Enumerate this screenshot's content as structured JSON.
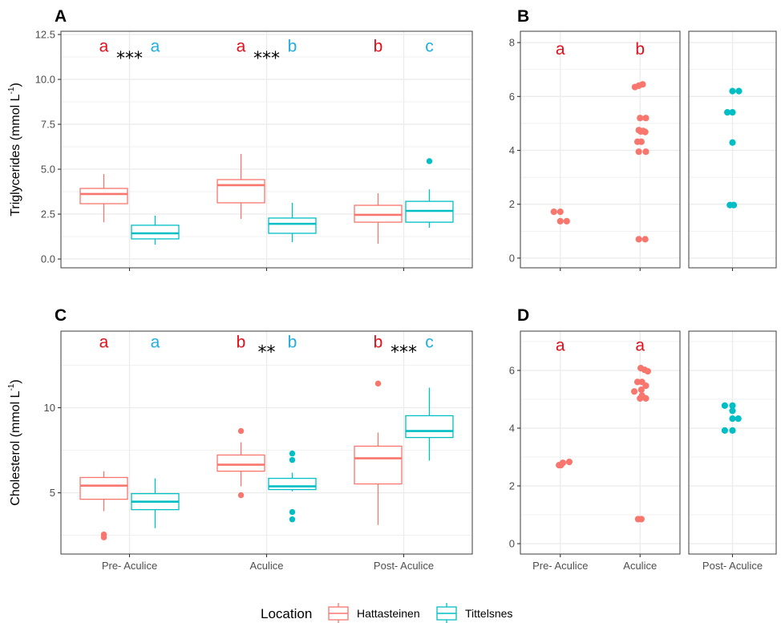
{
  "colors": {
    "hattasteinen": "#F8766D",
    "tittelsnes": "#00BFC4",
    "letter_red": "#E0101C",
    "letter_blue": "#22AEE0",
    "grid": "#ebebeb",
    "border": "#4d4d4d"
  },
  "legend": {
    "title": "Location",
    "position": "bottom",
    "entries": [
      {
        "key": "hattasteinen",
        "label": "Hattasteinen"
      },
      {
        "key": "tittelsnes",
        "label": "Tittelsnes"
      }
    ]
  },
  "chart_data": [
    {
      "id": "A",
      "panel_label": "A",
      "type": "box",
      "ylabel": "Triglycerides (mmol L",
      "ylabel_sup": "-1",
      "ylabel_close": ")",
      "ylim": [
        -0.49,
        12.68
      ],
      "yticks": [
        0.0,
        2.5,
        5.0,
        7.5,
        10.0,
        12.5
      ],
      "ytick_labels": [
        "0.0",
        "2.5",
        "5.0",
        "7.5",
        "10.0",
        "12.5"
      ],
      "yminor": [
        1.25,
        3.75,
        6.25,
        8.75,
        11.25
      ],
      "categories": [
        "Pre- Aculice",
        "Aculice",
        "Post- Aculice"
      ],
      "show_xtick_labels": false,
      "grid": true,
      "series": [
        {
          "name": "Hattasteinen",
          "key": "hattasteinen",
          "boxes": [
            {
              "category": "Pre- Aculice",
              "lower_whisker": 2.05,
              "q1": 3.08,
              "median": 3.62,
              "q3": 3.93,
              "upper_whisker": 4.73,
              "outliers": []
            },
            {
              "category": "Aculice",
              "lower_whisker": 2.23,
              "q1": 3.13,
              "median": 4.11,
              "q3": 4.42,
              "upper_whisker": 5.85,
              "outliers": []
            },
            {
              "category": "Post- Aculice",
              "lower_whisker": 0.85,
              "q1": 2.05,
              "median": 2.46,
              "q3": 2.99,
              "upper_whisker": 3.66,
              "outliers": []
            }
          ]
        },
        {
          "name": "Tittelsnes",
          "key": "tittelsnes",
          "boxes": [
            {
              "category": "Pre- Aculice",
              "lower_whisker": 0.8,
              "q1": 1.12,
              "median": 1.43,
              "q3": 1.88,
              "upper_whisker": 2.41,
              "outliers": []
            },
            {
              "category": "Aculice",
              "lower_whisker": 0.94,
              "q1": 1.43,
              "median": 1.96,
              "q3": 2.28,
              "upper_whisker": 3.13,
              "outliers": []
            },
            {
              "category": "Post- Aculice",
              "lower_whisker": 1.74,
              "q1": 2.05,
              "median": 2.68,
              "q3": 3.21,
              "upper_whisker": 3.88,
              "outliers": [
                5.45
              ]
            }
          ]
        }
      ],
      "annotations": [
        {
          "category": "Pre- Aculice",
          "text": "a",
          "color": "red",
          "pos": "left",
          "y": 11.9
        },
        {
          "category": "Pre- Aculice",
          "text": "***",
          "color": "black",
          "pos": "center",
          "y": 11.2
        },
        {
          "category": "Pre- Aculice",
          "text": "a",
          "color": "blue",
          "pos": "right",
          "y": 11.9
        },
        {
          "category": "Aculice",
          "text": "a",
          "color": "red",
          "pos": "left",
          "y": 11.9
        },
        {
          "category": "Aculice",
          "text": "***",
          "color": "black",
          "pos": "center",
          "y": 11.2
        },
        {
          "category": "Aculice",
          "text": "b",
          "color": "blue",
          "pos": "right",
          "y": 11.9
        },
        {
          "category": "Post- Aculice",
          "text": "b",
          "color": "red",
          "pos": "left",
          "y": 11.9
        },
        {
          "category": "Post- Aculice",
          "text": "c",
          "color": "blue",
          "pos": "right",
          "y": 11.9
        }
      ]
    },
    {
      "id": "B",
      "panel_label": "B",
      "type": "scatter",
      "ylim": [
        -0.36,
        8.42
      ],
      "yticks": [
        0,
        2,
        4,
        6,
        8
      ],
      "ytick_labels": [
        "0",
        "2",
        "4",
        "6",
        "8"
      ],
      "yminor": [
        1,
        3,
        5,
        7
      ],
      "facets": [
        {
          "categories": [
            "Pre- Aculice",
            "Aculice"
          ],
          "show_xtick_labels": false
        },
        {
          "categories": [
            "Post- Aculice"
          ],
          "show_xtick_labels": false
        }
      ],
      "grid": true,
      "points": [
        {
          "category": "Pre- Aculice",
          "key": "hattasteinen",
          "values": [
            1.72,
            1.72,
            1.37,
            1.37
          ],
          "jitter": [
            -0.5,
            0,
            0,
            0.5
          ]
        },
        {
          "category": "Aculice",
          "key": "hattasteinen",
          "values": [
            6.35,
            6.4,
            6.45,
            5.2,
            5.2,
            4.75,
            4.7,
            4.68,
            4.72,
            4.32,
            4.32,
            3.95,
            3.95,
            0.7,
            0.7
          ],
          "jitter": [
            -0.4,
            -0.1,
            0.2,
            0,
            0.45,
            -0.1,
            0.05,
            0.4,
            0.25,
            -0.2,
            0.1,
            -0.1,
            0.45,
            -0.1,
            0.4
          ]
        },
        {
          "category": "Post- Aculice",
          "key": "tittelsnes",
          "values": [
            6.2,
            6.2,
            5.41,
            5.41,
            4.29,
            1.97,
            1.97
          ],
          "jitter": [
            0,
            0.5,
            -0.4,
            0,
            0,
            -0.2,
            0.1
          ]
        }
      ],
      "annotations": [
        {
          "category": "Pre- Aculice",
          "text": "a",
          "color": "red",
          "y": 7.8
        },
        {
          "category": "Aculice",
          "text": "b",
          "color": "red",
          "y": 7.8
        }
      ]
    },
    {
      "id": "C",
      "panel_label": "C",
      "type": "box",
      "ylabel": "Cholesterol (mmol L",
      "ylabel_sup": "-1",
      "ylabel_close": ")",
      "ylim": [
        1.4,
        14.5
      ],
      "yticks": [
        5,
        10
      ],
      "ytick_labels": [
        "5",
        "10"
      ],
      "yminor": [
        2.5,
        7.5,
        12.5
      ],
      "categories": [
        "Pre- Aculice",
        "Aculice",
        "Post- Aculice"
      ],
      "show_xtick_labels": true,
      "grid": true,
      "series": [
        {
          "name": "Hattasteinen",
          "key": "hattasteinen",
          "boxes": [
            {
              "category": "Pre- Aculice",
              "lower_whisker": 3.92,
              "q1": 4.62,
              "median": 5.42,
              "q3": 5.9,
              "upper_whisker": 6.27,
              "outliers": [
                2.55,
                2.38
              ]
            },
            {
              "category": "Aculice",
              "lower_whisker": 5.38,
              "q1": 6.27,
              "median": 6.65,
              "q3": 7.22,
              "upper_whisker": 7.97,
              "outliers": [
                8.63,
                4.86
              ]
            },
            {
              "category": "Post- Aculice",
              "lower_whisker": 3.11,
              "q1": 5.52,
              "median": 7.03,
              "q3": 7.74,
              "upper_whisker": 8.54,
              "outliers": [
                11.42
              ]
            }
          ]
        },
        {
          "name": "Tittelsnes",
          "key": "tittelsnes",
          "boxes": [
            {
              "category": "Pre- Aculice",
              "lower_whisker": 2.92,
              "q1": 4.01,
              "median": 4.48,
              "q3": 4.95,
              "upper_whisker": 5.85,
              "outliers": []
            },
            {
              "category": "Aculice",
              "lower_whisker": 5.09,
              "q1": 5.19,
              "median": 5.38,
              "q3": 5.85,
              "upper_whisker": 6.18,
              "outliers": [
                7.31,
                6.93,
                3.87,
                3.44
              ]
            },
            {
              "category": "Post- Aculice",
              "lower_whisker": 6.89,
              "q1": 8.25,
              "median": 8.63,
              "q3": 9.53,
              "upper_whisker": 11.18,
              "outliers": []
            }
          ]
        }
      ],
      "annotations": [
        {
          "category": "Pre- Aculice",
          "text": "a",
          "color": "red",
          "pos": "left",
          "y": 13.9
        },
        {
          "category": "Pre- Aculice",
          "text": "a",
          "color": "blue",
          "pos": "right",
          "y": 13.9
        },
        {
          "category": "Aculice",
          "text": "b",
          "color": "red",
          "pos": "left",
          "y": 13.9
        },
        {
          "category": "Aculice",
          "text": "**",
          "color": "black",
          "pos": "center",
          "y": 13.3
        },
        {
          "category": "Aculice",
          "text": "b",
          "color": "blue",
          "pos": "right",
          "y": 13.9
        },
        {
          "category": "Post- Aculice",
          "text": "b",
          "color": "red",
          "pos": "left",
          "y": 13.9
        },
        {
          "category": "Post- Aculice",
          "text": "***",
          "color": "black",
          "pos": "center",
          "y": 13.3
        },
        {
          "category": "Post- Aculice",
          "text": "c",
          "color": "blue",
          "pos": "right",
          "y": 13.9
        }
      ]
    },
    {
      "id": "D",
      "panel_label": "D",
      "type": "scatter",
      "ylim": [
        -0.36,
        7.36
      ],
      "yticks": [
        0,
        2,
        4,
        6
      ],
      "ytick_labels": [
        "0",
        "2",
        "4",
        "6"
      ],
      "yminor": [
        1,
        3,
        5,
        7
      ],
      "facets": [
        {
          "categories": [
            "Pre- Aculice",
            "Aculice"
          ],
          "show_xtick_labels": true
        },
        {
          "categories": [
            "Post- Aculice"
          ],
          "show_xtick_labels": true
        }
      ],
      "grid": true,
      "points": [
        {
          "category": "Pre- Aculice",
          "key": "hattasteinen",
          "values": [
            2.72,
            2.72,
            2.8,
            2.83
          ],
          "jitter": [
            -0.1,
            0.05,
            0.2,
            0.7
          ]
        },
        {
          "category": "Aculice",
          "key": "hattasteinen",
          "values": [
            6.08,
            6.02,
            5.97,
            5.6,
            5.6,
            5.47,
            5.33,
            5.27,
            5.13,
            5.03,
            5.03,
            0.85,
            0.85
          ],
          "jitter": [
            0.05,
            0.35,
            0.6,
            -0.2,
            0.15,
            0.45,
            0.1,
            -0.45,
            0.15,
            0,
            0.45,
            -0.15,
            0.1
          ]
        },
        {
          "category": "Post- Aculice",
          "key": "tittelsnes",
          "values": [
            4.78,
            4.78,
            4.6,
            4.33,
            4.33,
            3.92,
            3.92
          ],
          "jitter": [
            -0.6,
            0,
            0,
            0,
            0.45,
            -0.6,
            0
          ]
        }
      ],
      "annotations": [
        {
          "category": "Pre- Aculice",
          "text": "a",
          "color": "red",
          "y": 6.9
        },
        {
          "category": "Aculice",
          "text": "a",
          "color": "red",
          "y": 6.9
        }
      ]
    }
  ]
}
